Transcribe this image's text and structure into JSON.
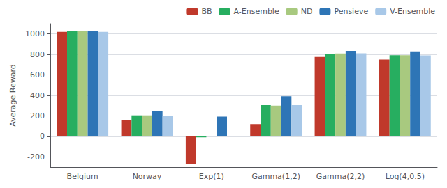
{
  "chart_data": {
    "type": "bar",
    "categories": [
      "Belgium",
      "Norway",
      "Exp(1)",
      "Gamma(1,2)",
      "Gamma(2,2)",
      "Log(4,0.5)"
    ],
    "series": [
      {
        "name": "BB",
        "color": "#c0392b",
        "values": [
          1020,
          160,
          -270,
          120,
          775,
          750
        ]
      },
      {
        "name": "A-Ensemble",
        "color": "#27ae60",
        "values": [
          1030,
          205,
          -10,
          305,
          808,
          793
        ]
      },
      {
        "name": "ND",
        "color": "#a8c97f",
        "values": [
          1025,
          205,
          0,
          300,
          810,
          793
        ]
      },
      {
        "name": "Pensieve",
        "color": "#2e75b6",
        "values": [
          1025,
          248,
          192,
          392,
          835,
          830
        ]
      },
      {
        "name": "V-Ensemble",
        "color": "#a8c8e8",
        "values": [
          1020,
          202,
          0,
          305,
          812,
          790
        ]
      }
    ],
    "ylabel": "Average Reward",
    "ylim": [
      -300,
      1100
    ],
    "yticks": [
      -200,
      0,
      200,
      400,
      600,
      800,
      1000
    ],
    "grid": true,
    "legend": "upper right"
  }
}
